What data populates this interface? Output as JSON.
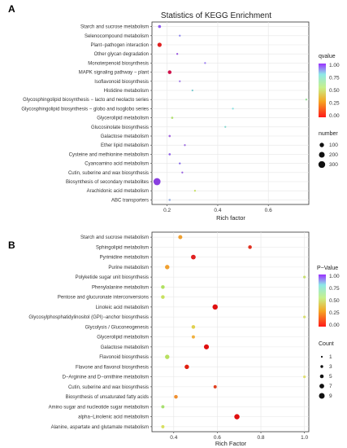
{
  "chart_data": [
    {
      "panel": "A",
      "type": "scatter",
      "title": "Statistics of KEGG Enrichment",
      "xlabel": "Rich factor",
      "ylabel": "",
      "xlim": [
        0.14,
        0.76
      ],
      "x_ticks": [
        "0.2",
        "0.4",
        "0.6"
      ],
      "x_tick_values": [
        0.2,
        0.4,
        0.6
      ],
      "color_legend": {
        "title": "qvalue",
        "ticks": [
          "1.00",
          "0.75",
          "0.50",
          "0.25",
          "0.00"
        ]
      },
      "size_legend": {
        "title": "number",
        "ticks": [
          "100",
          "200",
          "300"
        ],
        "values": [
          100,
          200,
          300
        ]
      },
      "points": [
        {
          "term": "Starch and sucrose metabolism",
          "x": 0.17,
          "color": "#8E5BF0",
          "size": 30
        },
        {
          "term": "Selenocompound metabolism",
          "x": 0.25,
          "color": "#8C86F0",
          "size": 5
        },
        {
          "term": "Plant−pathogen interaction",
          "x": 0.17,
          "color": "#E02020",
          "size": 90
        },
        {
          "term": "Other glycan degradation",
          "x": 0.24,
          "color": "#9B59E0",
          "size": 5
        },
        {
          "term": "Monoterpenoid biosynthesis",
          "x": 0.35,
          "color": "#9A7CF0",
          "size": 5
        },
        {
          "term": "MAPK signaling pathway − plant",
          "x": 0.21,
          "color": "#D0104A",
          "size": 60
        },
        {
          "term": "Isoflavonoid biosynthesis",
          "x": 0.25,
          "color": "#A27BE8",
          "size": 5
        },
        {
          "term": "Histidine metabolism",
          "x": 0.3,
          "color": "#7ACBD0",
          "size": 5
        },
        {
          "term": "Glycosphingolipid biosynthesis − lacto and neolacto series",
          "x": 0.75,
          "color": "#90E090",
          "size": 5
        },
        {
          "term": "Glycosphingolipid biosynthesis − globo and isoglobo series",
          "x": 0.46,
          "color": "#88E0E0",
          "size": 5
        },
        {
          "term": "Glycerolipid metabolism",
          "x": 0.22,
          "color": "#B0E070",
          "size": 10
        },
        {
          "term": "Glucosinolate biosynthesis",
          "x": 0.43,
          "color": "#8AD8D0",
          "size": 5
        },
        {
          "term": "Galactose metabolism",
          "x": 0.21,
          "color": "#A66AE0",
          "size": 10
        },
        {
          "term": "Ether lipid metabolism",
          "x": 0.27,
          "color": "#A070E0",
          "size": 5
        },
        {
          "term": "Cysteine and methionine metabolism",
          "x": 0.21,
          "color": "#9060E8",
          "size": 10
        },
        {
          "term": "Cyanoamino acid metabolism",
          "x": 0.25,
          "color": "#7F60E8",
          "size": 5
        },
        {
          "term": "Cutin, suberine and wax biosynthesis",
          "x": 0.26,
          "color": "#9A66E0",
          "size": 5
        },
        {
          "term": "Biosynthesis of secondary metabolites",
          "x": 0.16,
          "color": "#8A40E0",
          "size": 330
        },
        {
          "term": "Arachidonic acid metabolism",
          "x": 0.31,
          "color": "#C8E068",
          "size": 5
        },
        {
          "term": "ABC transporters",
          "x": 0.21,
          "color": "#9CB0E0",
          "size": 10
        }
      ]
    },
    {
      "panel": "B",
      "type": "scatter",
      "title": "",
      "xlabel": "Rich Factor",
      "ylabel": "",
      "xlim": [
        0.3,
        1.02
      ],
      "x_ticks": [
        "0.4",
        "0.6",
        "0.8",
        "1.0"
      ],
      "x_tick_values": [
        0.4,
        0.6,
        0.8,
        1.0
      ],
      "color_legend": {
        "title": "P−Value",
        "ticks": [
          "1.00",
          "0.75",
          "0.50",
          "0.25",
          "0.00"
        ]
      },
      "size_legend": {
        "title": "Count",
        "ticks": [
          "1",
          "3",
          "5",
          "7",
          "9"
        ],
        "values": [
          1,
          3,
          5,
          7,
          9
        ]
      },
      "points": [
        {
          "term": "Starch and sucrose metabolism",
          "x": 0.43,
          "color": "#F0A030",
          "size": 4
        },
        {
          "term": "Sphingolipid metabolism",
          "x": 0.75,
          "color": "#E03020",
          "size": 3
        },
        {
          "term": "Pyrimidine metabolism",
          "x": 0.49,
          "color": "#E02020",
          "size": 6
        },
        {
          "term": "Purine metabolism",
          "x": 0.37,
          "color": "#F0A030",
          "size": 5
        },
        {
          "term": "Polyketide sugar unit biosynthesis",
          "x": 1.0,
          "color": "#C8E070",
          "size": 1
        },
        {
          "term": "Phenylalanine metabolism",
          "x": 0.35,
          "color": "#B0E060",
          "size": 3
        },
        {
          "term": "Pentose and glucuronate interconversions",
          "x": 0.35,
          "color": "#C8E060",
          "size": 3
        },
        {
          "term": "Linoleic acid metabolism",
          "x": 0.59,
          "color": "#E01010",
          "size": 8
        },
        {
          "term": "Glycosylphosphatidylinositol (GPI)−anchor biosynthesis",
          "x": 1.0,
          "color": "#D8E070",
          "size": 1
        },
        {
          "term": "Glycolysis / Gluconeogenesis",
          "x": 0.49,
          "color": "#E0D050",
          "size": 3
        },
        {
          "term": "Glycerolipid metabolism",
          "x": 0.49,
          "color": "#F0B040",
          "size": 2
        },
        {
          "term": "Galactose metabolism",
          "x": 0.55,
          "color": "#E01010",
          "size": 7
        },
        {
          "term": "Flavonoid biosynthesis",
          "x": 0.37,
          "color": "#B8E060",
          "size": 5
        },
        {
          "term": "Flavone and flavonol biosynthesis",
          "x": 0.46,
          "color": "#E02010",
          "size": 5
        },
        {
          "term": "D−Arginine and D−ornithine metabolism",
          "x": 1.0,
          "color": "#E0E070",
          "size": 1
        },
        {
          "term": "Cutin, suberine and wax biosynthesis",
          "x": 0.59,
          "color": "#E04020",
          "size": 2
        },
        {
          "term": "Biosynthesis of unsaturated fatty acids",
          "x": 0.41,
          "color": "#F09030",
          "size": 3
        },
        {
          "term": "Amino sugar and nucleotide sugar metabolism",
          "x": 0.35,
          "color": "#A8E070",
          "size": 2
        },
        {
          "term": "alpha−Linolenic acid metabolism",
          "x": 0.69,
          "color": "#E01010",
          "size": 8
        },
        {
          "term": "Alanine, aspartate and glutamate metabolism",
          "x": 0.35,
          "color": "#D8E060",
          "size": 2
        }
      ]
    }
  ]
}
